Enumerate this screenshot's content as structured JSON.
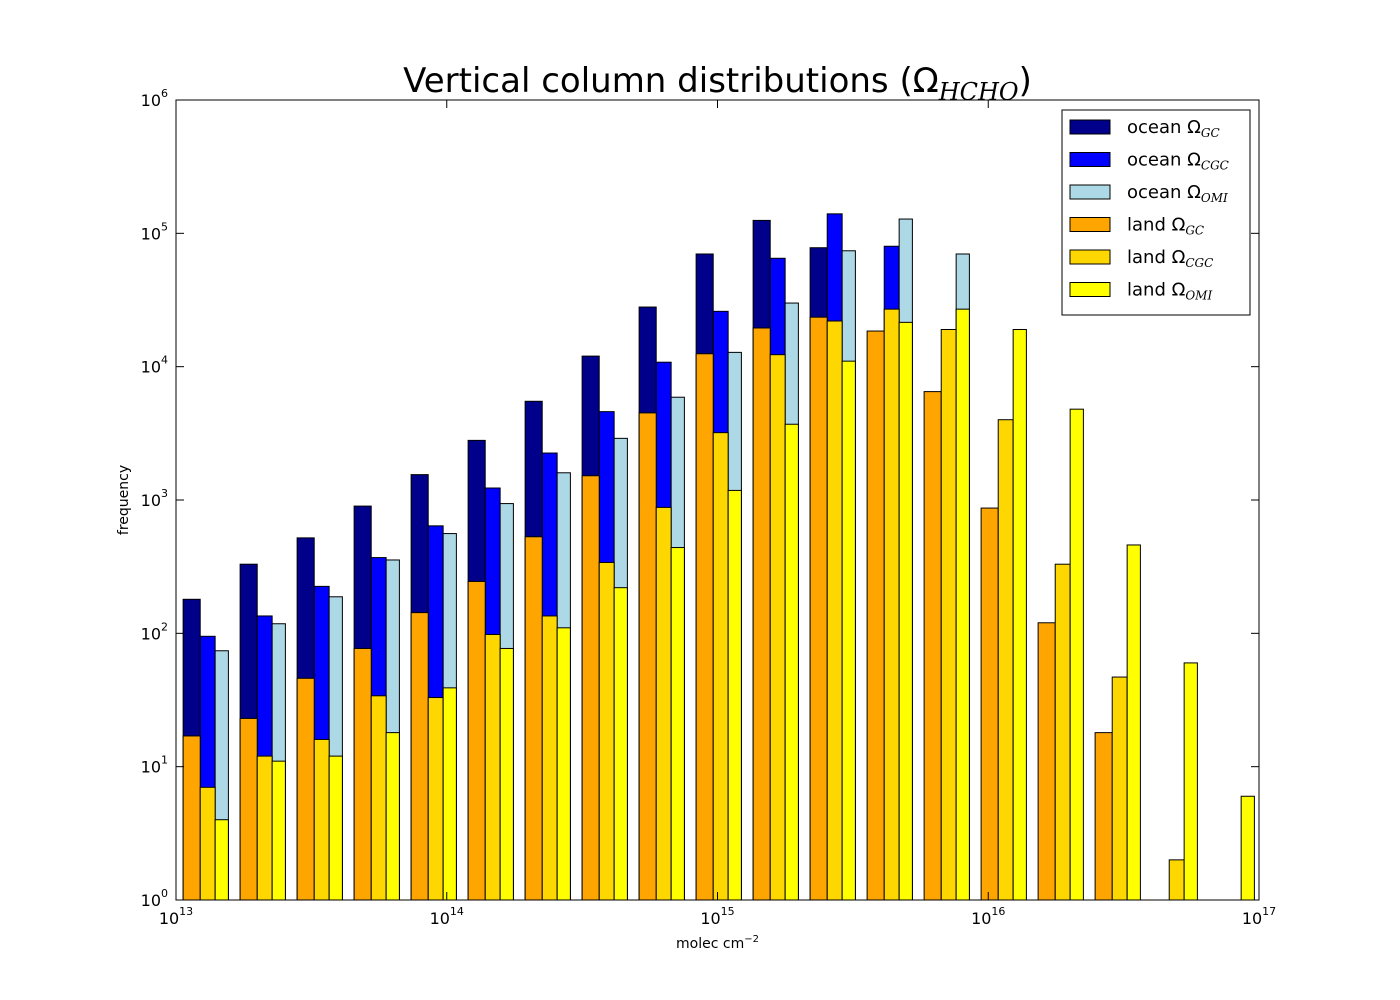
{
  "chart_data": {
    "type": "histogram",
    "title": "Vertical column distributions (Ω",
    "title_sub": "HCHO",
    "title_end": ")",
    "xlabel": "molec cm",
    "xlabel_sup": "−2",
    "ylabel": "frequency",
    "xscale": "log",
    "yscale": "log",
    "legend": "upper right",
    "bins": [
      10000000000000.0,
      16238000000000.0,
      26367000000000.0,
      42813000000000.0,
      69519000000000.0,
      112880000000000.0,
      183300000000000.0,
      297640000000000.0,
      483290000000000.0,
      784760000000000.0,
      1274300000000000.0,
      2069100000000000.0,
      3359800000000000.0,
      5455600000000000.0,
      8858700000000000.0,
      1.4384e+16,
      2.3357e+16,
      3.7927e+16,
      6.1585e+16,
      1e+17
    ],
    "series": [
      {
        "name": "ocean Ω",
        "name_sub": "GC",
        "color": "#00008b",
        "group": 0,
        "values": [
          180,
          330,
          520,
          900,
          1550,
          2800,
          5500,
          12000,
          28000,
          70000,
          125000,
          78000,
          null,
          null,
          null,
          null,
          null,
          null,
          null
        ]
      },
      {
        "name": "ocean Ω",
        "name_sub": "CGC",
        "color": "#0000ff",
        "group": 1,
        "values": [
          95,
          135,
          225,
          370,
          640,
          1230,
          2250,
          4600,
          10800,
          26000,
          65000,
          140000,
          80000,
          null,
          null,
          null,
          null,
          null,
          null
        ]
      },
      {
        "name": "ocean Ω",
        "name_sub": "OMI",
        "color": "#add8e6",
        "group": 2,
        "values": [
          74,
          118,
          188,
          355,
          560,
          940,
          1600,
          2900,
          5900,
          12800,
          30000,
          74000,
          128000,
          70000,
          null,
          null,
          null,
          null,
          null
        ]
      },
      {
        "name": "land Ω",
        "name_sub": "GC",
        "color": "#ffa500",
        "group": 0,
        "values": [
          17,
          23,
          46,
          77,
          143,
          245,
          530,
          1520,
          4500,
          12500,
          19500,
          23500,
          18500,
          6500,
          870,
          120,
          18,
          null,
          null
        ]
      },
      {
        "name": "land Ω",
        "name_sub": "CGC",
        "color": "#ffd700",
        "group": 1,
        "values": [
          7,
          12,
          16,
          34,
          33,
          98,
          135,
          340,
          880,
          3200,
          12300,
          22000,
          27000,
          19000,
          4000,
          330,
          47,
          2,
          null
        ]
      },
      {
        "name": "land Ω",
        "name_sub": "OMI",
        "color": "#ffff00",
        "group": 2,
        "values": [
          4,
          11,
          12,
          18,
          39,
          77,
          110,
          220,
          440,
          1180,
          3700,
          11000,
          21500,
          27000,
          19000,
          4800,
          460,
          60,
          6
        ]
      }
    ],
    "xlim": [
      10000000000000.0,
      1e+17
    ],
    "xticks": [
      {
        "value": 10000000000000.0,
        "label": "10",
        "sup": "13"
      },
      {
        "value": 100000000000000.0,
        "label": "10",
        "sup": "14"
      },
      {
        "value": 1000000000000000.0,
        "label": "10",
        "sup": "15"
      },
      {
        "value": 1e+16,
        "label": "10",
        "sup": "16"
      },
      {
        "value": 1e+17,
        "label": "10",
        "sup": "17"
      }
    ],
    "ylim": [
      1,
      1000000
    ],
    "yticks": [
      {
        "value": 1,
        "label": "10",
        "sup": "0"
      },
      {
        "value": 10,
        "label": "10",
        "sup": "1"
      },
      {
        "value": 100,
        "label": "10",
        "sup": "2"
      },
      {
        "value": 1000,
        "label": "10",
        "sup": "3"
      },
      {
        "value": 10000,
        "label": "10",
        "sup": "4"
      },
      {
        "value": 100000,
        "label": "10",
        "sup": "5"
      },
      {
        "value": 1000000,
        "label": "10",
        "sup": "6"
      }
    ]
  }
}
